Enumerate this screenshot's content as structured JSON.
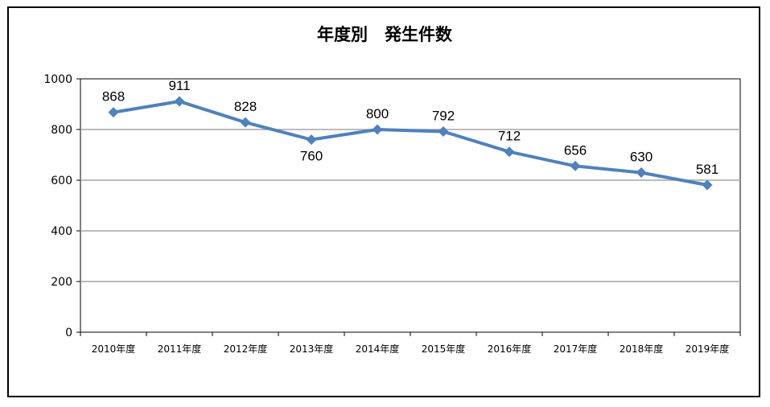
{
  "chart_data": {
    "type": "line",
    "title": "年度別　発生件数",
    "xlabel": "",
    "ylabel": "",
    "categories": [
      "2010年度",
      "2011年度",
      "2012年度",
      "2013年度",
      "2014年度",
      "2015年度",
      "2016年度",
      "2017年度",
      "2018年度",
      "2019年度"
    ],
    "series": [
      {
        "values": [
          868,
          911,
          828,
          760,
          800,
          792,
          712,
          656,
          630,
          581
        ]
      }
    ],
    "data_labels": [
      "868",
      "911",
      "828",
      "760",
      "800",
      "792",
      "712",
      "656",
      "630",
      "581"
    ],
    "ylim": [
      0,
      1000
    ],
    "yticks": [
      "0",
      "200",
      "400",
      "600",
      "800",
      "1000"
    ],
    "grid": true,
    "legend": "none",
    "colors": {
      "line": "#4f81bd",
      "grid": "#a6a6a6",
      "label": "#000000",
      "highlight_label": "#ff0000"
    }
  }
}
